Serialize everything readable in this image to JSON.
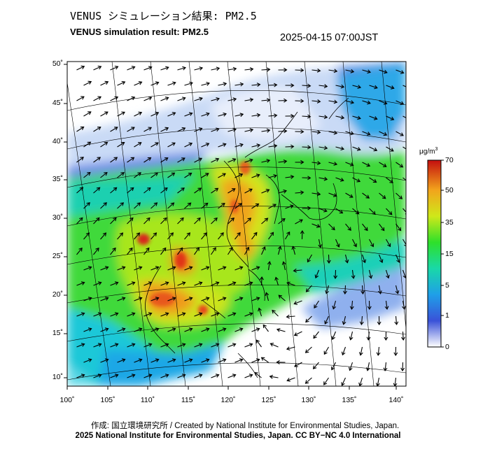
{
  "title_jp": "VENUS シミュレーション結果: PM2.5",
  "title_en": "VENUS simulation result: PM2.5",
  "timestamp": "2025-04-15 07:00JST",
  "map": {
    "lat_ticks": [
      "50˚",
      "45˚",
      "40˚",
      "35˚",
      "30˚",
      "25˚",
      "20˚",
      "15˚",
      "10˚"
    ],
    "lon_ticks": [
      "100˚",
      "105˚",
      "110˚",
      "115˚",
      "120˚",
      "125˚",
      "130˚",
      "135˚",
      "140˚"
    ],
    "lat_values": [
      50,
      45,
      40,
      35,
      30,
      25,
      20,
      15,
      10
    ],
    "lon_values": [
      100,
      105,
      110,
      115,
      120,
      125,
      130,
      135,
      140
    ],
    "field_colors": {
      "land_line": "#000000",
      "graticule": "#000000"
    }
  },
  "colorbar": {
    "unit_base": "μg/m",
    "unit_exp": "3",
    "ticks": [
      "70",
      "50",
      "35",
      "15",
      "5",
      "1",
      "0"
    ],
    "values": [
      70,
      50,
      35,
      15,
      5,
      1,
      0
    ],
    "stops": [
      "#ffffff",
      "#2b4fd8",
      "#1fa0e8",
      "#19d8a8",
      "#2ee02a",
      "#d6e81a",
      "#f4a81c",
      "#e43a12",
      "#c40f0f"
    ]
  },
  "credit": "作成: 国立環境研究所 / Created by National Institute for Environmental Studies, Japan.",
  "copyright": "2025 National Institute for Environmental Studies, Japan. CC BY−NC 4.0 International"
}
